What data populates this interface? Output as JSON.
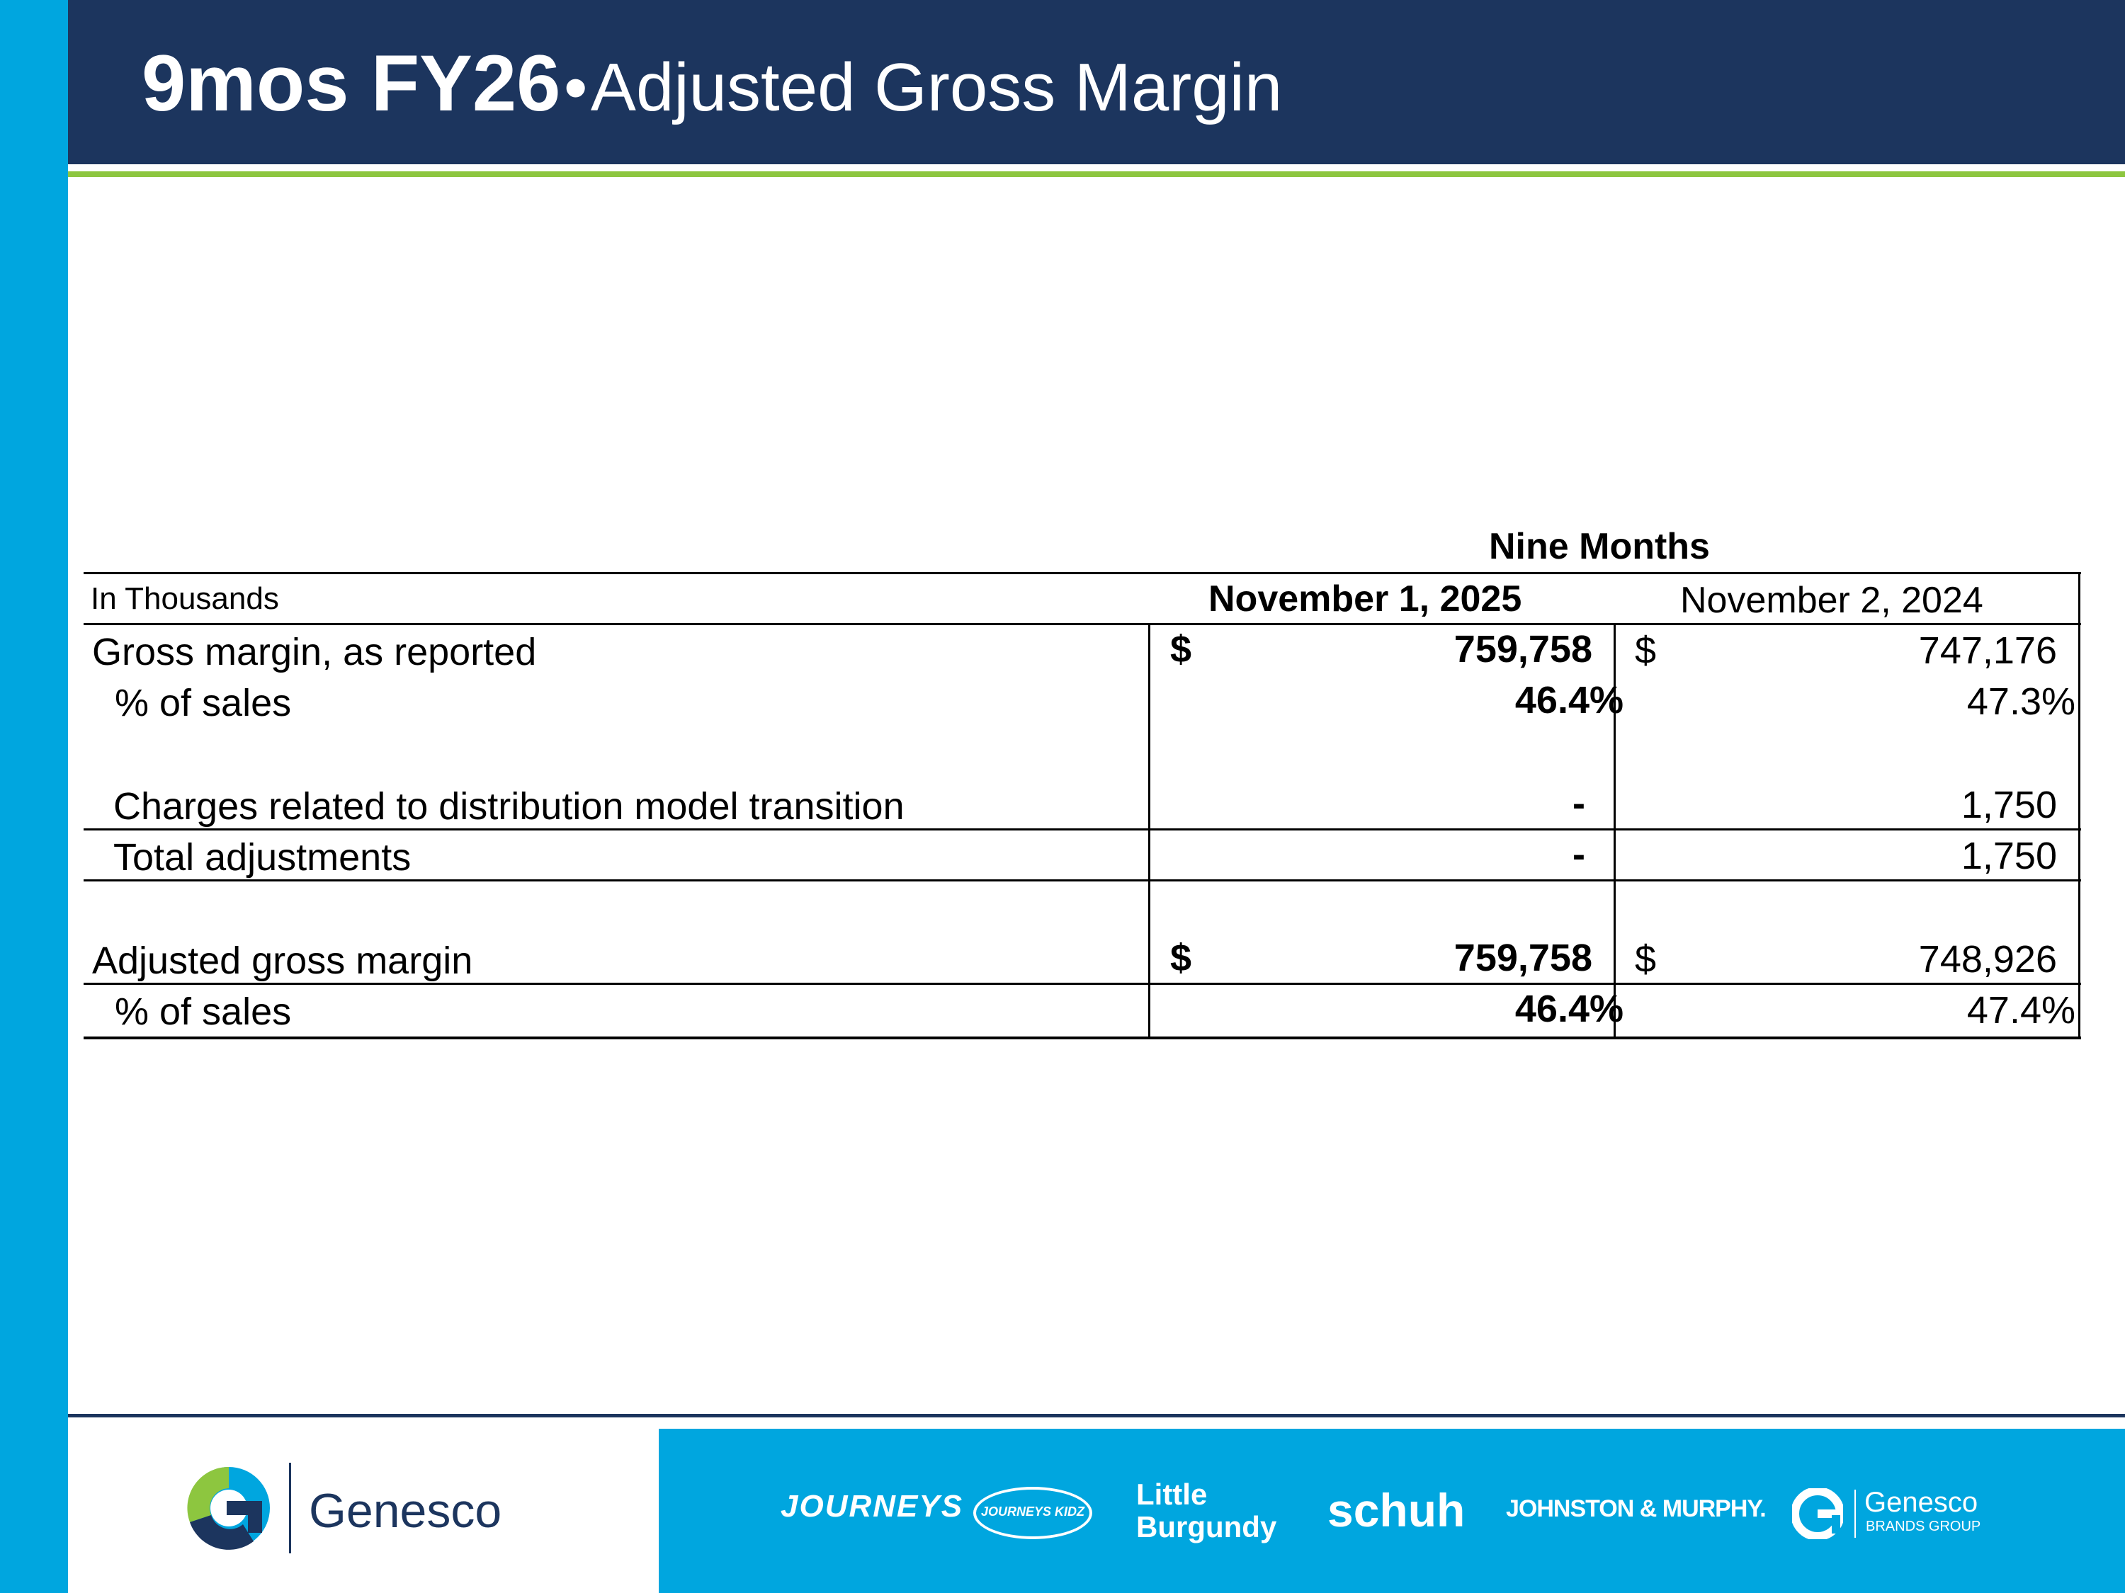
{
  "slide": {
    "title_bold": "9mos FY26",
    "title_separator": "•",
    "title_rest": "Adjusted Gross Margin"
  },
  "table": {
    "group_header": "Nine Months",
    "unit_label": "In Thousands",
    "columns": [
      "November 1, 2025",
      "November 2, 2024"
    ],
    "rows": [
      {
        "label": "Gross margin, as reported",
        "cur_symbol": "$",
        "cur_value": "759,758",
        "prior_symbol": "$",
        "prior_value": "747,176"
      },
      {
        "label": "% of sales",
        "cur_value": "46.4%",
        "prior_value": "47.3%"
      },
      {
        "label": "Charges related to distribution model transition",
        "cur_value": "-",
        "prior_value": "1,750"
      },
      {
        "label": "Total adjustments",
        "cur_value": "-",
        "prior_value": "1,750"
      },
      {
        "label": "Adjusted gross margin",
        "cur_symbol": "$",
        "cur_value": "759,758",
        "prior_symbol": "$",
        "prior_value": "748,926"
      },
      {
        "label": "% of sales",
        "cur_value": "46.4%",
        "prior_value": "47.4%"
      }
    ]
  },
  "footer": {
    "company_logo_text": "Genesco",
    "brands": [
      "JOURNEYS",
      "JOURNEYS KIDZ",
      "Little",
      "Burgundy",
      "schuh",
      "JOHNSTON & MURPHY.",
      "Genesco",
      "BRANDS GROUP"
    ]
  },
  "colors": {
    "navy": "#1c355e",
    "blue": "#00a6df",
    "green": "#8dc63f"
  }
}
